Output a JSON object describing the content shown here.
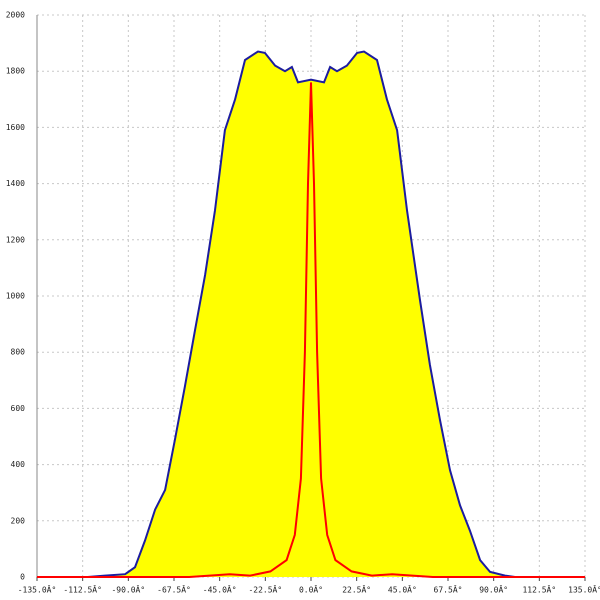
{
  "chart_data": {
    "type": "line",
    "series": [
      {
        "color": "#1c1ca0",
        "fill": "#ffff00",
        "x": [
          -110,
          -101.5,
          -91.6,
          -86.7,
          -81.8,
          -76.8,
          -71.9,
          -67,
          -62.1,
          -57.1,
          -52.2,
          -47.3,
          -42.4,
          -37.4,
          -32.5,
          -26.1,
          -22.7,
          -17.7,
          -12.8,
          -9.4,
          -6.4,
          0,
          6.4,
          9.4,
          12.8,
          17.7,
          22.7,
          26.1,
          32.5,
          37.4,
          42.4,
          47.3,
          53.7,
          58.6,
          63.5,
          68.5,
          73.4,
          78.3,
          83.3,
          88.2,
          95.6,
          100.5
        ],
        "values": [
          0,
          5,
          10,
          35,
          130,
          240,
          310,
          490,
          680,
          880,
          1075,
          1305,
          1590,
          1700,
          1840,
          1870,
          1865,
          1820,
          1800,
          1815,
          1760,
          1770,
          1760,
          1815,
          1800,
          1820,
          1865,
          1870,
          1840,
          1700,
          1590,
          1305,
          985,
          755,
          560,
          380,
          255,
          165,
          60,
          18,
          5,
          0
        ]
      },
      {
        "color": "#ff0000",
        "x": [
          -135,
          -60,
          -40,
          -30,
          -20,
          -12,
          -8,
          -5,
          -3,
          -1.5,
          0,
          1.5,
          3,
          5,
          8,
          12,
          20,
          30,
          40,
          60,
          135
        ],
        "values": [
          0,
          0,
          10,
          5,
          20,
          60,
          150,
          350,
          800,
          1400,
          1760,
          1400,
          800,
          350,
          150,
          60,
          20,
          5,
          10,
          0,
          0
        ]
      }
    ],
    "xlim": [
      -135,
      135
    ],
    "xticks": [
      {
        "value": -135,
        "label": "-135.0Â°"
      },
      {
        "value": -112.5,
        "label": "-112.5Â°"
      },
      {
        "value": -90,
        "label": "-90.0Â°"
      },
      {
        "value": -67.5,
        "label": "-67.5Â°"
      },
      {
        "value": -45,
        "label": "-45.0Â°"
      },
      {
        "value": -22.5,
        "label": "-22.5Â°"
      },
      {
        "value": 0,
        "label": "0.0Â°"
      },
      {
        "value": 22.5,
        "label": "22.5Â°"
      },
      {
        "value": 45,
        "label": "45.0Â°"
      },
      {
        "value": 67.5,
        "label": "67.5Â°"
      },
      {
        "value": 90,
        "label": "90.0Â°"
      },
      {
        "value": 112.5,
        "label": "112.5Â°"
      },
      {
        "value": 135,
        "label": "135.0Â°"
      }
    ],
    "ylim": [
      0,
      2000
    ],
    "yticks": [
      0,
      200,
      400,
      600,
      800,
      1000,
      1200,
      1400,
      1600,
      1800,
      2000
    ],
    "grid": true
  }
}
